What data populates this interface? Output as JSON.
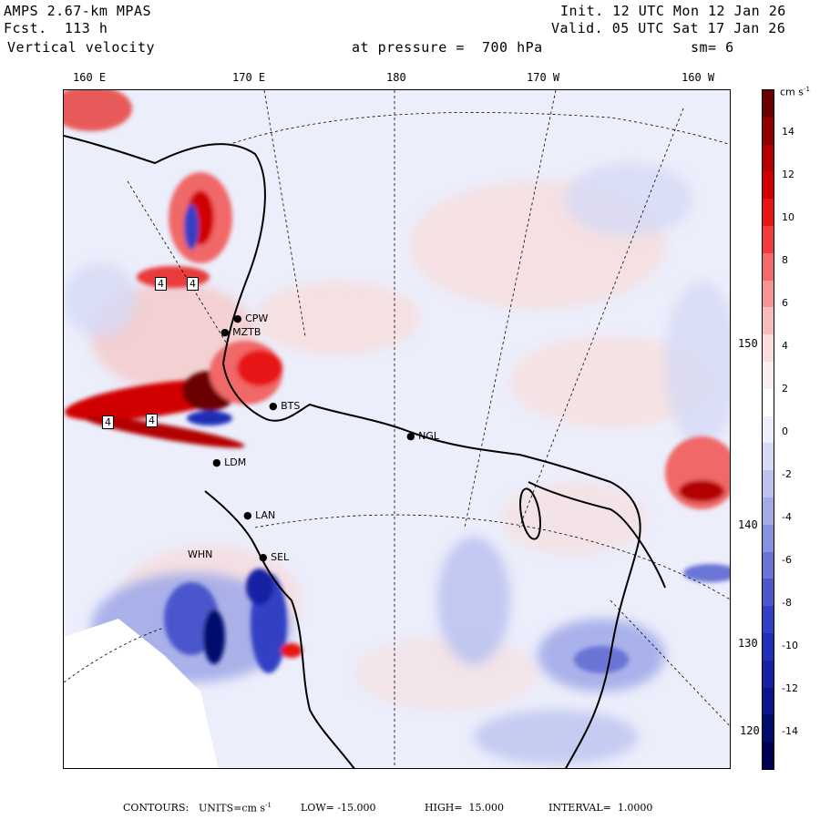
{
  "header": {
    "model": "AMPS 2.67-km MPAS",
    "forecast": "Fcst.  113 h",
    "field": "Vertical velocity",
    "level": "at pressure =  700 hPa",
    "init": "Init. 12 UTC Mon 12 Jan 26",
    "valid": "Valid. 05 UTC Sat 17 Jan 26",
    "smoothing": "sm= 6"
  },
  "longitude_ticks": [
    "160 E",
    "170 E",
    "180",
    "170 W",
    "160 W"
  ],
  "latitude_ticks": [
    "150 W",
    "140 W",
    "130 W",
    "120 W"
  ],
  "colorbar": {
    "units": "cm s",
    "units_exp": "-1",
    "labels": [
      "14",
      "12",
      "10",
      "8",
      "6",
      "4",
      "2",
      "0",
      "-2",
      "-4",
      "-6",
      "-8",
      "-10",
      "-12",
      "-14"
    ],
    "colors": [
      "#6b0000",
      "#8f0000",
      "#b30000",
      "#d10000",
      "#e81515",
      "#f23c3c",
      "#f46a6a",
      "#f59595",
      "#f7bcbc",
      "#f9dcdc",
      "#fbeeee",
      "#ffffff",
      "#eceefb",
      "#d6daf5",
      "#bcc3ef",
      "#a2abe8",
      "#8791df",
      "#6a74d6",
      "#4c57cc",
      "#3140c4",
      "#1f2fb6",
      "#1622a3",
      "#0c168c",
      "#000c6e",
      "#000050"
    ]
  },
  "stations": [
    "CPW",
    "MZTB",
    "BTS",
    "NGL",
    "LDM",
    "LAN",
    "SEL",
    "WHN"
  ],
  "contour_labels": [
    "4",
    "4",
    "4",
    "4"
  ],
  "footer": {
    "contours": "CONTOURS:",
    "units_label": "UNITS=cm s",
    "units_exp": "-1",
    "low": "LOW= -15.000",
    "high": "HIGH=  15.000",
    "interval": "INTERVAL=  1.0000"
  }
}
